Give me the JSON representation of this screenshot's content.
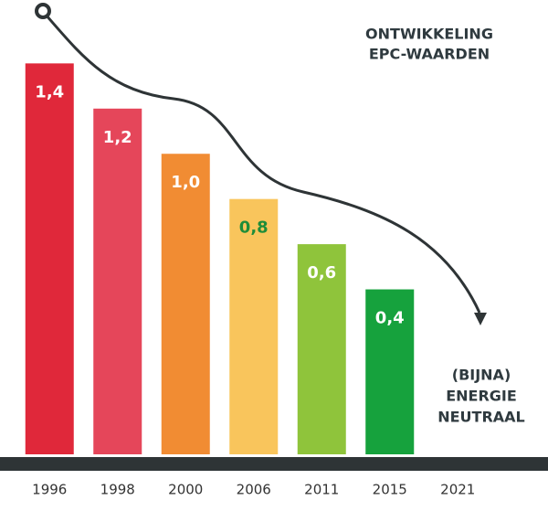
{
  "chart_data": {
    "type": "bar",
    "title": [
      "ONTWIKKELING",
      "EPC-WAARDEN"
    ],
    "annotation": [
      "(BIJNA)",
      "ENERGIE",
      "NEUTRAAL"
    ],
    "categories": [
      "1996",
      "1998",
      "2000",
      "2006",
      "2011",
      "2015",
      "2021"
    ],
    "values": [
      1.4,
      1.2,
      1.0,
      0.8,
      0.6,
      0.4,
      null
    ],
    "value_labels": [
      "1,4",
      "1,2",
      "1,0",
      "0,8",
      "0,6",
      "0,4",
      null
    ],
    "colors": [
      "#e0283a",
      "#e5465a",
      "#f18c33",
      "#f9c55c",
      "#8fc43b",
      "#16a23d",
      null
    ],
    "value_label_colors": [
      "#ffffff",
      "#ffffff",
      "#ffffff",
      "#1e8d39",
      "#ffffff",
      "#ffffff",
      null
    ],
    "ylim": [
      -0.33,
      1.45
    ]
  }
}
